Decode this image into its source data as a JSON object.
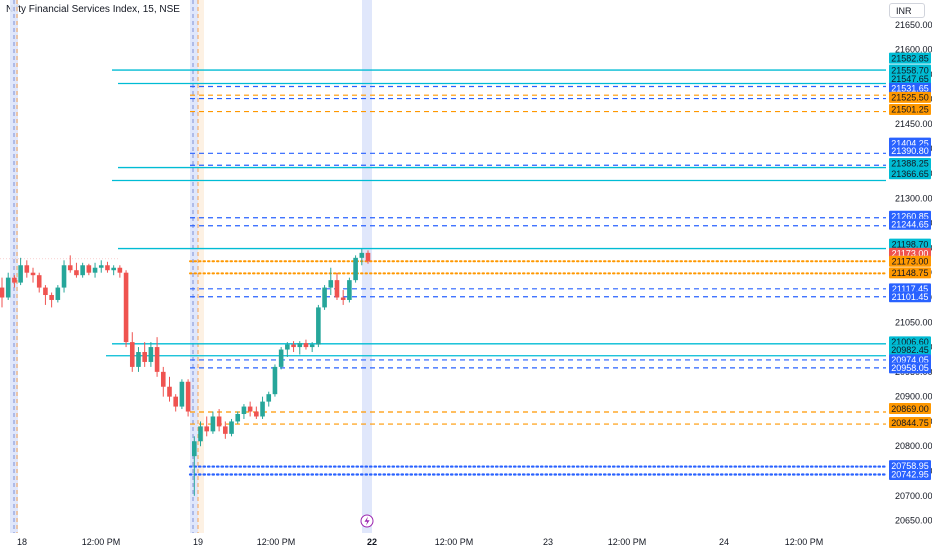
{
  "header": {
    "title": "Nifty Financial Services Index, 15, NSE",
    "currency": "INR"
  },
  "event_icon": "lightning-icon",
  "colors": {
    "up": "#26a69a",
    "down": "#ef5350",
    "cyan": "#00bcd4",
    "blue": "#2962ff",
    "orange": "#ff9800",
    "highlight_band": "#dde4fb",
    "session_line_blue": "#7e8fd6",
    "session_line_orange": "#f5a35a"
  },
  "chart_data": {
    "type": "candlestick",
    "ylim": [
      20625,
      21700
    ],
    "y_ticks": [
      21650,
      21600,
      21550,
      21500,
      21450,
      21400,
      21350,
      21300,
      21250,
      21200,
      21150,
      21100,
      21050,
      21000,
      20950,
      20900,
      20850,
      20800,
      20750,
      20700,
      20650
    ],
    "x_labels": [
      "18",
      "12:00 PM",
      "19",
      "12:00 PM",
      "22",
      "12:00 PM",
      "23",
      "12:00 PM",
      "24",
      "12:00 PM"
    ],
    "candles": [
      {
        "o": 21120,
        "h": 21140,
        "l": 21080,
        "c": 21100
      },
      {
        "o": 21100,
        "h": 21150,
        "l": 21095,
        "c": 21140
      },
      {
        "o": 21140,
        "h": 21145,
        "l": 21120,
        "c": 21130
      },
      {
        "o": 21130,
        "h": 21180,
        "l": 21125,
        "c": 21165
      },
      {
        "o": 21165,
        "h": 21175,
        "l": 21140,
        "c": 21150
      },
      {
        "o": 21150,
        "h": 21160,
        "l": 21130,
        "c": 21145
      },
      {
        "o": 21145,
        "h": 21150,
        "l": 21110,
        "c": 21120
      },
      {
        "o": 21120,
        "h": 21125,
        "l": 21085,
        "c": 21105
      },
      {
        "o": 21105,
        "h": 21110,
        "l": 21080,
        "c": 21095
      },
      {
        "o": 21095,
        "h": 21125,
        "l": 21090,
        "c": 21120
      },
      {
        "o": 21120,
        "h": 21175,
        "l": 21110,
        "c": 21165
      },
      {
        "o": 21165,
        "h": 21185,
        "l": 21150,
        "c": 21155
      },
      {
        "o": 21155,
        "h": 21170,
        "l": 21140,
        "c": 21145
      },
      {
        "o": 21145,
        "h": 21170,
        "l": 21140,
        "c": 21165
      },
      {
        "o": 21165,
        "h": 21168,
        "l": 21145,
        "c": 21150
      },
      {
        "o": 21150,
        "h": 21170,
        "l": 21140,
        "c": 21160
      },
      {
        "o": 21160,
        "h": 21175,
        "l": 21150,
        "c": 21165
      },
      {
        "o": 21165,
        "h": 21172,
        "l": 21150,
        "c": 21155
      },
      {
        "o": 21155,
        "h": 21165,
        "l": 21145,
        "c": 21160
      },
      {
        "o": 21160,
        "h": 21165,
        "l": 21140,
        "c": 21150
      },
      {
        "o": 21150,
        "h": 21155,
        "l": 21000,
        "c": 21010
      },
      {
        "o": 21010,
        "h": 21030,
        "l": 20950,
        "c": 20960
      },
      {
        "o": 20960,
        "h": 21000,
        "l": 20950,
        "c": 20990
      },
      {
        "o": 20990,
        "h": 21010,
        "l": 20960,
        "c": 20970
      },
      {
        "o": 20970,
        "h": 21010,
        "l": 20960,
        "c": 21000
      },
      {
        "o": 21000,
        "h": 21020,
        "l": 20940,
        "c": 20950
      },
      {
        "o": 20950,
        "h": 20960,
        "l": 20900,
        "c": 20920
      },
      {
        "o": 20920,
        "h": 20940,
        "l": 20890,
        "c": 20900
      },
      {
        "o": 20900,
        "h": 20905,
        "l": 20870,
        "c": 20880
      },
      {
        "o": 20880,
        "h": 20935,
        "l": 20875,
        "c": 20930
      },
      {
        "o": 20930,
        "h": 20935,
        "l": 20860,
        "c": 20870
      },
      {
        "o": 20780,
        "h": 20820,
        "l": 20700,
        "c": 20810
      },
      {
        "o": 20810,
        "h": 20850,
        "l": 20800,
        "c": 20840
      },
      {
        "o": 20840,
        "h": 20860,
        "l": 20820,
        "c": 20830
      },
      {
        "o": 20830,
        "h": 20870,
        "l": 20825,
        "c": 20860
      },
      {
        "o": 20860,
        "h": 20875,
        "l": 20830,
        "c": 20840
      },
      {
        "o": 20840,
        "h": 20850,
        "l": 20815,
        "c": 20825
      },
      {
        "o": 20825,
        "h": 20855,
        "l": 20820,
        "c": 20850
      },
      {
        "o": 20850,
        "h": 20870,
        "l": 20845,
        "c": 20865
      },
      {
        "o": 20865,
        "h": 20885,
        "l": 20855,
        "c": 20880
      },
      {
        "o": 20880,
        "h": 20890,
        "l": 20860,
        "c": 20870
      },
      {
        "o": 20870,
        "h": 20880,
        "l": 20855,
        "c": 20860
      },
      {
        "o": 20860,
        "h": 20900,
        "l": 20855,
        "c": 20890
      },
      {
        "o": 20890,
        "h": 20910,
        "l": 20880,
        "c": 20905
      },
      {
        "o": 20905,
        "h": 20965,
        "l": 20900,
        "c": 20960
      },
      {
        "o": 20960,
        "h": 21000,
        "l": 20955,
        "c": 20995
      },
      {
        "o": 20995,
        "h": 21010,
        "l": 20980,
        "c": 21005
      },
      {
        "o": 21005,
        "h": 21012,
        "l": 20990,
        "c": 21000
      },
      {
        "o": 21000,
        "h": 21012,
        "l": 20985,
        "c": 21008
      },
      {
        "o": 21008,
        "h": 21015,
        "l": 20995,
        "c": 21000
      },
      {
        "o": 21000,
        "h": 21010,
        "l": 20990,
        "c": 21005
      },
      {
        "o": 21005,
        "h": 21085,
        "l": 21000,
        "c": 21080
      },
      {
        "o": 21080,
        "h": 21125,
        "l": 21075,
        "c": 21120
      },
      {
        "o": 21120,
        "h": 21160,
        "l": 21105,
        "c": 21135
      },
      {
        "o": 21135,
        "h": 21150,
        "l": 21095,
        "c": 21100
      },
      {
        "o": 21100,
        "h": 21115,
        "l": 21085,
        "c": 21095
      },
      {
        "o": 21095,
        "h": 21140,
        "l": 21090,
        "c": 21135
      },
      {
        "o": 21135,
        "h": 21185,
        "l": 21130,
        "c": 21180
      },
      {
        "o": 21180,
        "h": 21198,
        "l": 21165,
        "c": 21190
      },
      {
        "o": 21190,
        "h": 21195,
        "l": 21168,
        "c": 21173
      }
    ],
    "levels": [
      {
        "price": 21558.7,
        "style": "solid",
        "color": "cyan",
        "width": 1.3,
        "from": 112
      },
      {
        "price": 21531.65,
        "style": "solid",
        "color": "cyan",
        "width": 1.3,
        "from": 118
      },
      {
        "price": 21525.5,
        "style": "dashed",
        "color": "blue",
        "width": 1.2,
        "from": 190
      },
      {
        "price": 21508.0,
        "style": "dashed",
        "color": "orange",
        "width": 1.2,
        "from": 190
      },
      {
        "price": 21501.25,
        "style": "dashed",
        "color": "blue",
        "width": 1.2,
        "from": 190
      },
      {
        "price": 21475.0,
        "style": "dashed",
        "color": "orange",
        "width": 1.2,
        "from": 190
      },
      {
        "price": 21390.8,
        "style": "dashed",
        "color": "blue",
        "width": 1.2,
        "from": 190
      },
      {
        "price": 21366.65,
        "style": "dashed",
        "color": "blue",
        "width": 1.2,
        "from": 190
      },
      {
        "price": 21362.0,
        "style": "solid",
        "color": "cyan",
        "width": 1.3,
        "from": 118
      },
      {
        "price": 21336.0,
        "style": "solid",
        "color": "cyan",
        "width": 1.3,
        "from": 112
      },
      {
        "price": 21260.85,
        "style": "dashed",
        "color": "blue",
        "width": 1.2,
        "from": 190
      },
      {
        "price": 21244.65,
        "style": "dashed",
        "color": "blue",
        "width": 1.2,
        "from": 190
      },
      {
        "price": 21198.7,
        "style": "solid",
        "color": "cyan",
        "width": 1.3,
        "from": 118
      },
      {
        "price": 21173.0,
        "style": "dotted",
        "color": "orange",
        "width": 2,
        "from": 190
      },
      {
        "price": 21148.75,
        "style": "dotted",
        "color": "orange",
        "width": 2,
        "from": 190
      },
      {
        "price": 21117.45,
        "style": "dashed",
        "color": "blue",
        "width": 1.2,
        "from": 190
      },
      {
        "price": 21101.45,
        "style": "dashed",
        "color": "blue",
        "width": 1.2,
        "from": 190
      },
      {
        "price": 21006.6,
        "style": "solid",
        "color": "cyan",
        "width": 1.3,
        "from": 112
      },
      {
        "price": 20982.45,
        "style": "solid",
        "color": "cyan",
        "width": 1.3,
        "from": 106
      },
      {
        "price": 20974.05,
        "style": "dashed",
        "color": "blue",
        "width": 1.2,
        "from": 190
      },
      {
        "price": 20958.05,
        "style": "dashed",
        "color": "blue",
        "width": 1.2,
        "from": 190
      },
      {
        "price": 20869.0,
        "style": "dashed",
        "color": "orange",
        "width": 1.2,
        "from": 190
      },
      {
        "price": 20844.75,
        "style": "dashed",
        "color": "orange",
        "width": 1.2,
        "from": 190
      },
      {
        "price": 20758.95,
        "style": "dotted",
        "color": "blue",
        "width": 2.2,
        "from": 190
      },
      {
        "price": 20742.95,
        "style": "dotted",
        "color": "blue",
        "width": 2.2,
        "from": 190
      }
    ],
    "price_labels": [
      {
        "text": "21582.85",
        "bg": "#00bcd4",
        "fg": "#131722",
        "price": 21582.85
      },
      {
        "text": "21558.70",
        "bg": "#00bcd4",
        "fg": "#131722",
        "price": 21558.7
      },
      {
        "text": "21547.65",
        "bg": "#00bcd4",
        "fg": "#131722",
        "price": 21540.65
      },
      {
        "text": "21531.65",
        "bg": "#2962ff",
        "fg": "#ffffff",
        "price": 21522.0
      },
      {
        "text": "21525.50",
        "bg": "#ff9800",
        "fg": "#131722",
        "price": 21503.5
      },
      {
        "text": "21501.25",
        "bg": "#ff9800",
        "fg": "#131722",
        "price": 21479.25
      },
      {
        "text": "21404.25",
        "bg": "#2962ff",
        "fg": "#ffffff",
        "price": 21411.25
      },
      {
        "text": "21390.80",
        "bg": "#2962ff",
        "fg": "#ffffff",
        "price": 21395.8
      },
      {
        "text": "21388.25",
        "bg": "#00bcd4",
        "fg": "#131722",
        "price": 21370.25
      },
      {
        "text": "21366.65",
        "bg": "#00bcd4",
        "fg": "#131722",
        "price": 21349.65
      },
      {
        "text": "21260.85",
        "bg": "#2962ff",
        "fg": "#ffffff",
        "price": 21263.85
      },
      {
        "text": "21244.65",
        "bg": "#2962ff",
        "fg": "#ffffff",
        "price": 21247.65
      },
      {
        "text": "21198.70",
        "bg": "#00bcd4",
        "fg": "#131722",
        "price": 21207.7
      },
      {
        "text": "21173.00",
        "bg": "#ef5350",
        "fg": "#ffffff",
        "price": 21189.0
      },
      {
        "text": "21173.00",
        "bg": "#ff9800",
        "fg": "#131722",
        "price": 21173.0
      },
      {
        "text": "21148.75",
        "bg": "#ff9800",
        "fg": "#131722",
        "price": 21149.75
      },
      {
        "text": "21117.45",
        "bg": "#2962ff",
        "fg": "#ffffff",
        "price": 21117.45
      },
      {
        "text": "21101.45",
        "bg": "#2962ff",
        "fg": "#ffffff",
        "price": 21101.45
      },
      {
        "text": "21006.60",
        "bg": "#00bcd4",
        "fg": "#131722",
        "price": 21010.6
      },
      {
        "text": "20982.45",
        "bg": "#00bcd4",
        "fg": "#131722",
        "price": 20994.45
      },
      {
        "text": "20974.05",
        "bg": "#2962ff",
        "fg": "#ffffff",
        "price": 20974.05
      },
      {
        "text": "20958.05",
        "bg": "#2962ff",
        "fg": "#ffffff",
        "price": 20958.05
      },
      {
        "text": "20869.00",
        "bg": "#ff9800",
        "fg": "#131722",
        "price": 20876.0
      },
      {
        "text": "20844.75",
        "bg": "#ff9800",
        "fg": "#131722",
        "price": 20847.75
      },
      {
        "text": "20758.95",
        "bg": "#2962ff",
        "fg": "#ffffff",
        "price": 20760.95
      },
      {
        "text": "20742.95",
        "bg": "#2962ff",
        "fg": "#ffffff",
        "price": 20742.95
      }
    ]
  }
}
